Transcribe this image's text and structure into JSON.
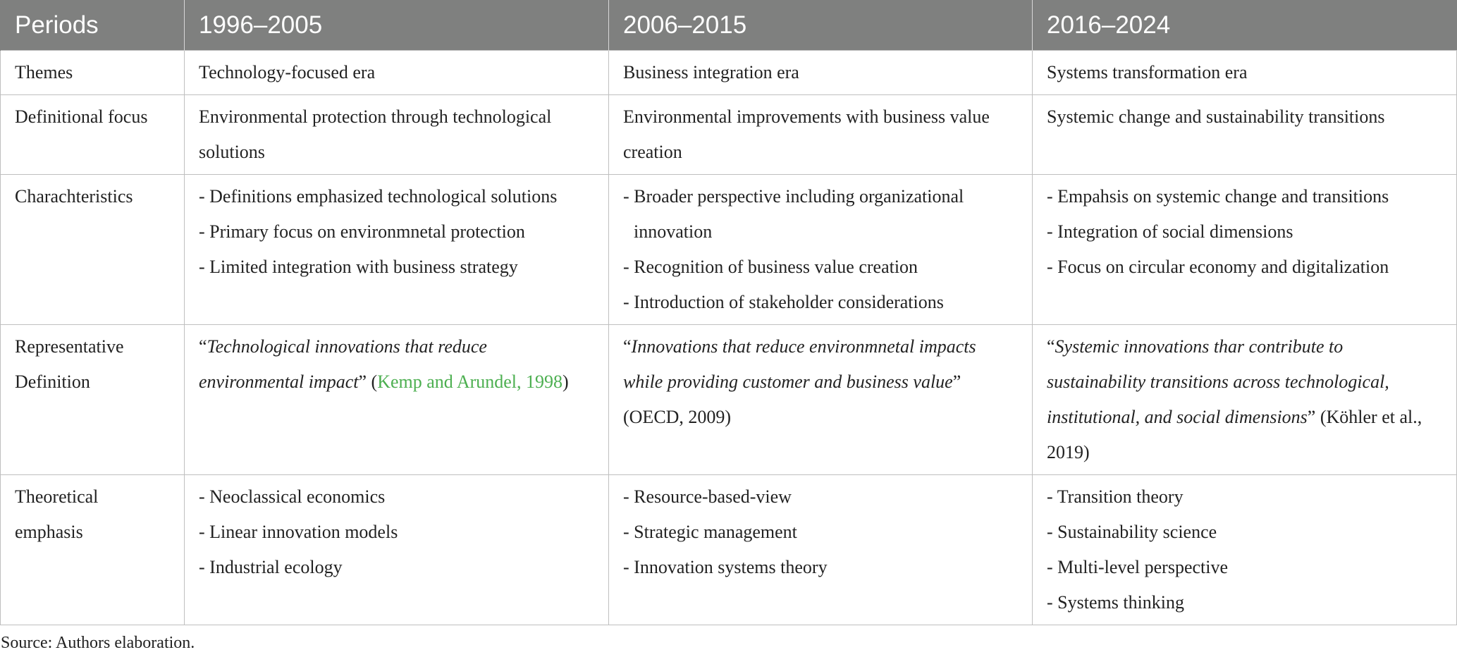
{
  "header": [
    "Periods",
    "1996–2005",
    "2006–2015",
    "2016–2024"
  ],
  "rows": [
    {
      "label": "Themes",
      "cells": [
        "Technology-focused era",
        "Business integration era",
        "Systems transformation era"
      ]
    },
    {
      "label": "Definitional focus",
      "cells": [
        "Environmental protection through technological solutions",
        "Environmental improvements with business value creation",
        "Systemic change and sustainability transitions"
      ]
    },
    {
      "label": "Charachteristics",
      "cells": [
        [
          "- Definitions emphasized technological solutions",
          "- Primary focus on environmnetal protection",
          "- Limited integration with business strategy"
        ],
        [
          "- Broader perspective including organizational innovation",
          "- Recognition of business value creation",
          "- Introduction of stakeholder considerations"
        ],
        [
          "- Empahsis on systemic change and transitions",
          "- Integration of social dimensions",
          "- Focus on circular economy and digitalization"
        ]
      ]
    },
    {
      "label": "Representative Definition",
      "cells": [
        [
          {
            "text": "“"
          },
          {
            "text": "Technological innovations that reduce environmental impact",
            "style": "italic"
          },
          {
            "text": "” ("
          },
          {
            "text": "Kemp and Arundel, 1998",
            "style": "link"
          },
          {
            "text": ")"
          }
        ],
        [
          {
            "text": "“"
          },
          {
            "text": "Innovations that reduce environmnetal impacts while providing customer and business value",
            "style": "italic"
          },
          {
            "text": "” (OECD, 2009)"
          }
        ],
        [
          {
            "text": "“"
          },
          {
            "text": "Systemic innovations thar contribute to sustainability transitions across technological, institutional, and social dimensions",
            "style": "italic"
          },
          {
            "text": "” (Köhler et al., 2019)"
          }
        ]
      ]
    },
    {
      "label": "Theoretical emphasis",
      "cells": [
        [
          "- Neoclassical economics",
          "- Linear innovation models",
          "- Industrial ecology"
        ],
        [
          "- Resource-based-view",
          "- Strategic management",
          "- Innovation systems theory"
        ],
        [
          "- Transition theory",
          "- Sustainability science",
          "- Multi-level perspective",
          "- Systems thinking"
        ]
      ]
    }
  ],
  "footnote": "Source: Authors elaboration."
}
